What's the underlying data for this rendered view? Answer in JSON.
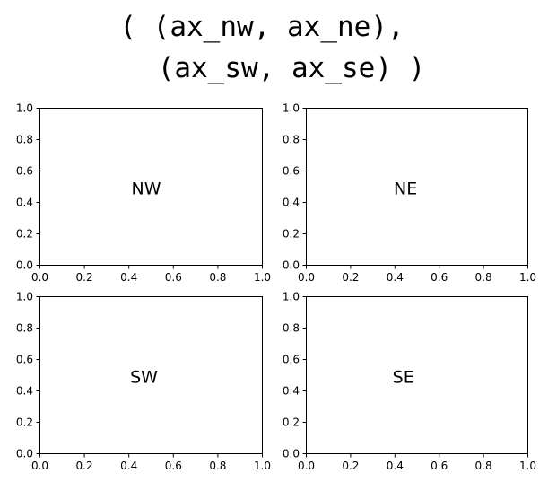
{
  "title": {
    "line1": "( (ax_nw, ax_ne),",
    "line2": "(ax_sw, ax_se) )"
  },
  "chart_data": [
    {
      "type": "scatter",
      "name": "ax_nw",
      "label": "NW",
      "xlim": [
        0.0,
        1.0
      ],
      "ylim": [
        0.0,
        1.0
      ],
      "xticks": [
        "0.0",
        "0.2",
        "0.4",
        "0.6",
        "0.8",
        "1.0"
      ],
      "yticks": [
        "0.0",
        "0.2",
        "0.4",
        "0.6",
        "0.8",
        "1.0"
      ],
      "annotation": {
        "text": "NW",
        "x": 0.48,
        "y": 0.49
      },
      "grid": false
    },
    {
      "type": "scatter",
      "name": "ax_ne",
      "label": "NE",
      "xlim": [
        0.0,
        1.0
      ],
      "ylim": [
        0.0,
        1.0
      ],
      "xticks": [
        "0.0",
        "0.2",
        "0.4",
        "0.6",
        "0.8",
        "1.0"
      ],
      "yticks": [
        "0.0",
        "0.2",
        "0.4",
        "0.6",
        "0.8",
        "1.0"
      ],
      "annotation": {
        "text": "NE",
        "x": 0.45,
        "y": 0.49
      },
      "grid": false
    },
    {
      "type": "scatter",
      "name": "ax_sw",
      "label": "SW",
      "xlim": [
        0.0,
        1.0
      ],
      "ylim": [
        0.0,
        1.0
      ],
      "xticks": [
        "0.0",
        "0.2",
        "0.4",
        "0.6",
        "0.8",
        "1.0"
      ],
      "yticks": [
        "0.0",
        "0.2",
        "0.4",
        "0.6",
        "0.8",
        "1.0"
      ],
      "annotation": {
        "text": "SW",
        "x": 0.47,
        "y": 0.49
      },
      "grid": false
    },
    {
      "type": "scatter",
      "name": "ax_se",
      "label": "SE",
      "xlim": [
        0.0,
        1.0
      ],
      "ylim": [
        0.0,
        1.0
      ],
      "xticks": [
        "0.0",
        "0.2",
        "0.4",
        "0.6",
        "0.8",
        "1.0"
      ],
      "yticks": [
        "0.0",
        "0.2",
        "0.4",
        "0.6",
        "0.8",
        "1.0"
      ],
      "annotation": {
        "text": "SE",
        "x": 0.44,
        "y": 0.49
      },
      "grid": false
    }
  ]
}
